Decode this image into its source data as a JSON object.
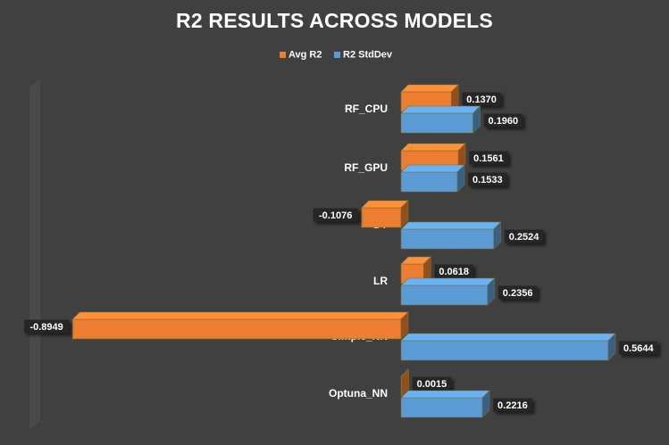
{
  "chart_data": {
    "type": "bar",
    "orientation": "horizontal",
    "title": "R2 RESULTS ACROSS MODELS",
    "categories": [
      "RF_CPU",
      "RF_GPU",
      "DT",
      "LR",
      "Simple_NN",
      "Optuna_NN"
    ],
    "series": [
      {
        "name": "Avg R2",
        "color": "#ED7D31",
        "values": [
          0.137,
          0.1561,
          -0.1076,
          0.0618,
          -0.8949,
          0.0015
        ]
      },
      {
        "name": "R2 StdDev",
        "color": "#5B9BD5",
        "values": [
          0.196,
          0.1533,
          0.2524,
          0.2356,
          0.5644,
          0.2216
        ]
      }
    ],
    "data_labels": [
      [
        "0.1370",
        "0.1960"
      ],
      [
        "0.1561",
        "0.1533"
      ],
      [
        "-0.1076",
        "0.2524"
      ],
      [
        "0.0618",
        "0.2356"
      ],
      [
        "-0.8949",
        "0.5644"
      ],
      [
        "0.0015",
        "0.2216"
      ]
    ],
    "xlim": [
      -0.9,
      0.6
    ],
    "legend_position": "top",
    "grid": false,
    "style": "3d-clustered-bar"
  }
}
